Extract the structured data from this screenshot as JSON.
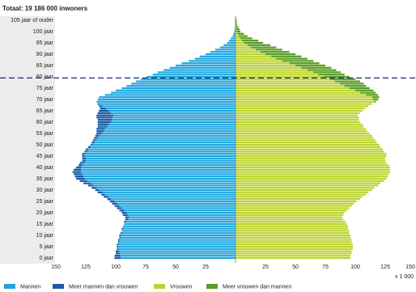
{
  "chart_data": {
    "type": "population_pyramid",
    "subtitle": "Totaal: 19 186 000 inwoners",
    "x_unit": "x 1 000",
    "categories": [
      "0 jaar",
      null,
      null,
      null,
      null,
      "5 jaar",
      null,
      null,
      null,
      null,
      "10 jaar",
      null,
      null,
      null,
      null,
      "15 jaar",
      null,
      null,
      null,
      null,
      "20 jaar",
      null,
      null,
      null,
      null,
      "25 jaar",
      null,
      null,
      null,
      null,
      "30 jaar",
      null,
      null,
      null,
      null,
      "35 jaar",
      null,
      null,
      null,
      null,
      "40 jaar",
      null,
      null,
      null,
      null,
      "45 jaar",
      null,
      null,
      null,
      null,
      "50 jaar",
      null,
      null,
      null,
      null,
      "55 jaar",
      null,
      null,
      null,
      null,
      "60 jaar",
      null,
      null,
      null,
      null,
      "65 jaar",
      null,
      null,
      null,
      null,
      "70 jaar",
      null,
      null,
      null,
      null,
      "75 jaar",
      null,
      null,
      null,
      null,
      "80 jaar",
      null,
      null,
      null,
      null,
      "85 jaar",
      null,
      null,
      null,
      null,
      "90 jaar",
      null,
      null,
      null,
      null,
      "95 jaar",
      null,
      null,
      null,
      null,
      "100 jaar",
      null,
      null,
      null,
      null,
      "105 jaar of ouder"
    ],
    "series": [
      {
        "name": "Mannen",
        "color": "#1ea6de",
        "excess_name": "Meer mannen dan vrouwen",
        "excess_color": "#1d5aa6",
        "values": [
          101,
          101,
          100,
          100,
          99,
          99,
          99,
          98,
          98,
          97,
          97,
          96,
          95,
          95,
          94,
          93,
          93,
          92,
          92,
          94,
          95,
          97,
          99,
          101,
          103,
          105,
          107,
          110,
          112,
          115,
          117,
          120,
          123,
          127,
          130,
          133,
          134,
          135,
          136,
          135,
          133,
          131,
          130,
          128,
          128,
          128,
          128,
          126,
          125,
          123,
          121,
          120,
          119,
          118,
          117,
          116,
          116,
          116,
          115,
          115,
          115,
          115,
          116,
          116,
          115,
          114,
          113,
          114,
          115,
          116,
          115,
          114,
          109,
          104,
          100,
          95,
          91,
          87,
          83,
          79,
          74,
          69,
          65,
          60,
          55,
          50,
          45,
          39,
          34,
          30,
          25,
          21,
          17,
          13,
          10,
          7,
          5.5,
          4,
          2.5,
          1.8,
          1,
          0.7,
          0.5,
          0.3,
          0.3,
          0.3
        ]
      },
      {
        "name": "Vrouwen",
        "color": "#bdd431",
        "excess_name": "Meer vrouwen dan mannen",
        "excess_color": "#5a9e2c",
        "values": [
          96,
          96,
          97,
          97,
          98,
          98,
          98,
          97,
          97,
          96,
          96,
          95,
          95,
          94,
          94,
          93,
          92,
          90,
          89,
          90,
          91,
          93,
          95,
          97,
          99,
          101,
          104,
          106,
          109,
          111,
          114,
          116,
          119,
          121,
          124,
          126,
          127,
          128,
          129,
          129,
          129,
          128,
          126,
          125,
          125,
          126,
          126,
          124,
          123,
          121,
          120,
          118,
          117,
          115,
          114,
          112,
          110,
          109,
          107,
          106,
          104,
          103,
          103,
          102,
          104,
          106,
          108,
          111,
          114,
          117,
          119,
          120,
          119,
          117,
          115,
          112,
          109,
          107,
          104,
          100,
          95,
          91,
          88,
          84,
          80,
          75,
          70,
          65,
          60,
          55,
          50,
          45,
          39,
          34,
          29,
          23,
          19,
          14,
          10,
          7,
          4,
          3.4,
          2.3,
          1.2,
          1.1,
          1
        ]
      }
    ],
    "xlim": [
      0,
      150
    ],
    "xticks": [
      25,
      50,
      75,
      100,
      125,
      150
    ],
    "reference_line": 79.5,
    "reference_line_color": "#1b2a6b"
  }
}
